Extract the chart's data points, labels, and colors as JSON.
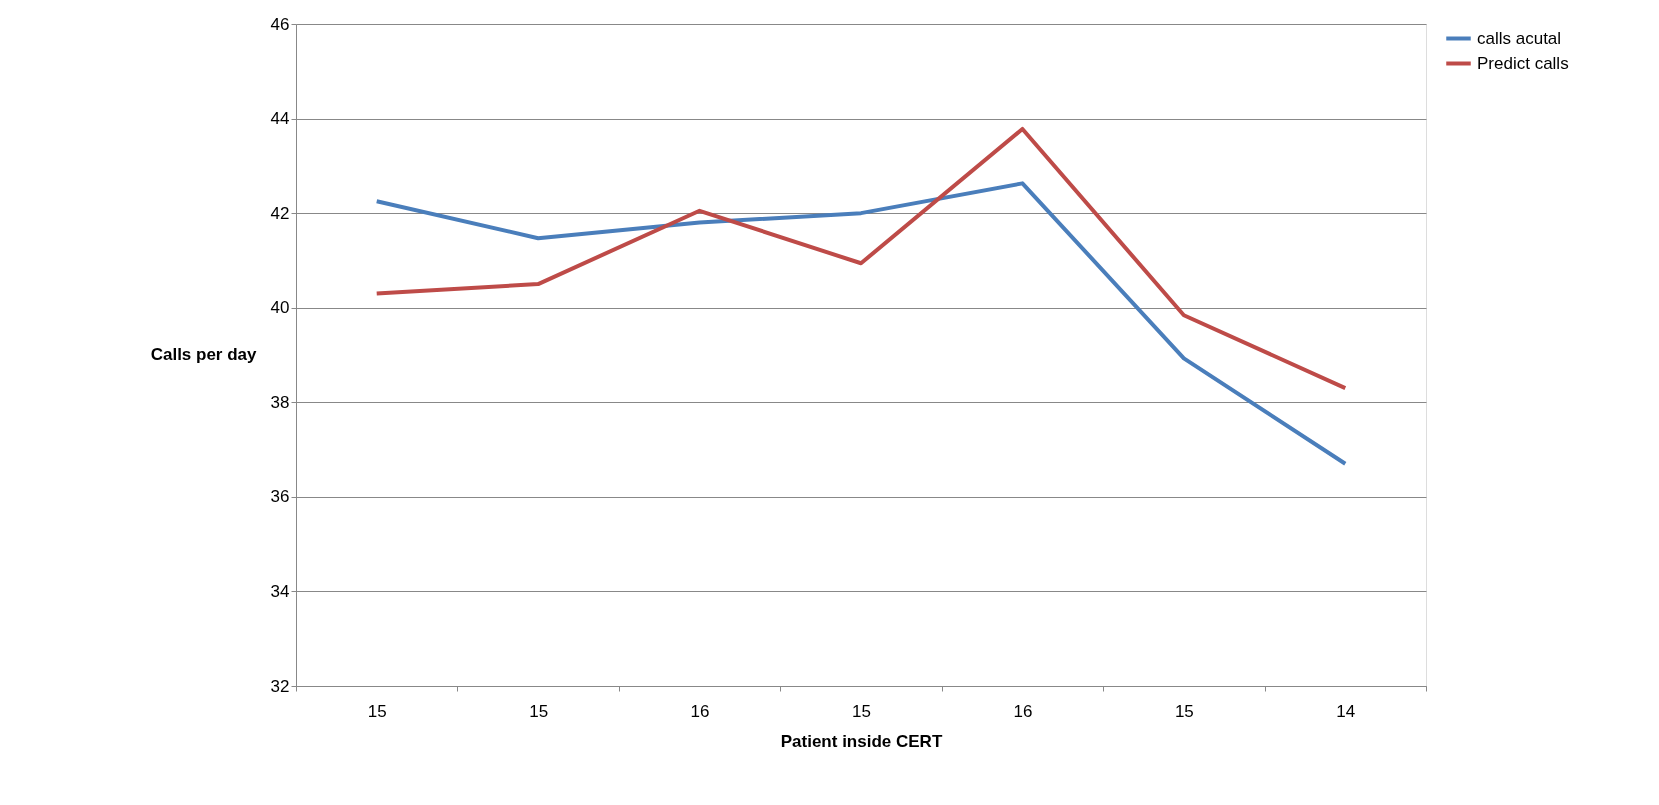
{
  "chart_data": {
    "type": "line",
    "xlabel": "Patient inside CERT",
    "ylabel": "Calls per day",
    "categories": [
      "15",
      "15",
      "16",
      "15",
      "16",
      "15",
      "14"
    ],
    "ylim": [
      32,
      46
    ],
    "yticks": [
      32,
      34,
      36,
      38,
      40,
      42,
      44,
      46
    ],
    "grid": "y",
    "legend": "right",
    "marker": "none",
    "line_style": "solid",
    "series": [
      {
        "name": "calls acutal",
        "color": "#4a7ebb",
        "values": [
          42.25,
          41.47,
          41.8,
          42.0,
          42.63,
          38.93,
          36.7
        ]
      },
      {
        "name": "Predict calls",
        "color": "#be4b48",
        "values": [
          40.3,
          40.5,
          42.05,
          40.94,
          43.78,
          39.84,
          38.3
        ]
      }
    ]
  }
}
